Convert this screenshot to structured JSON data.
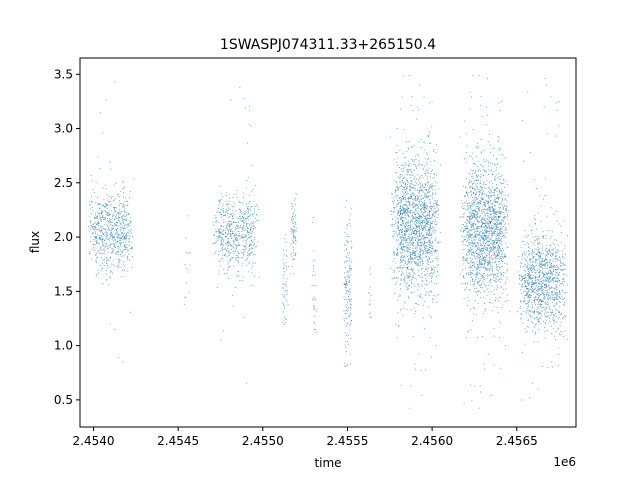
{
  "chart_data": {
    "type": "scatter",
    "title": "1SWASPJ074311.33+265150.4",
    "xlabel": "time",
    "ylabel": "flux",
    "x_offset_label": "1e6",
    "xlim": [
      2.45392,
      2.45685
    ],
    "ylim": [
      0.25,
      3.65
    ],
    "x_ticks": [
      2.454,
      2.4545,
      2.455,
      2.4555,
      2.456,
      2.4565
    ],
    "x_tick_labels": [
      "2.4540",
      "2.4545",
      "2.4550",
      "2.4555",
      "2.4560",
      "2.4565"
    ],
    "y_ticks": [
      0.5,
      1.0,
      1.5,
      2.0,
      2.5,
      3.0,
      3.5
    ],
    "y_tick_labels": [
      "0.5",
      "1.0",
      "1.5",
      "2.0",
      "2.5",
      "3.0",
      "3.5"
    ],
    "grid": false,
    "legend": "none",
    "marker_color": "#1f77b4",
    "series": [
      {
        "clusters": [
          {
            "x": 2.4541,
            "width": 0.00014,
            "center": 2.05,
            "spread": 0.17,
            "min": 0.85,
            "max": 3.5,
            "count": 700
          },
          {
            "x": 2.45455,
            "width": 2e-05,
            "center": 1.7,
            "spread": 0.35,
            "min": 1.03,
            "max": 2.27,
            "count": 14
          },
          {
            "x": 2.45484,
            "width": 0.00014,
            "center": 2.05,
            "spread": 0.17,
            "min": 0.65,
            "max": 3.47,
            "count": 620
          },
          {
            "x": 2.45513,
            "width": 2e-05,
            "center": 1.6,
            "spread": 0.22,
            "min": 1.18,
            "max": 2.05,
            "count": 55
          },
          {
            "x": 2.45518,
            "width": 2e-05,
            "center": 2.05,
            "spread": 0.15,
            "min": 1.65,
            "max": 2.42,
            "count": 80
          },
          {
            "x": 2.4553,
            "width": 1.5e-05,
            "center": 1.6,
            "spread": 0.3,
            "min": 0.93,
            "max": 2.25,
            "count": 30
          },
          {
            "x": 2.4555,
            "width": 2.5e-05,
            "center": 1.55,
            "spread": 0.3,
            "min": 0.78,
            "max": 2.38,
            "count": 160
          },
          {
            "x": 2.45563,
            "width": 1e-05,
            "center": 1.5,
            "spread": 0.2,
            "min": 1.2,
            "max": 1.8,
            "count": 14
          },
          {
            "x": 2.4559,
            "width": 0.00015,
            "center": 2.1,
            "spread": 0.3,
            "min": 0.42,
            "max": 3.5,
            "count": 1700
          },
          {
            "x": 2.45631,
            "width": 0.00015,
            "center": 2.05,
            "spread": 0.3,
            "min": 0.42,
            "max": 3.5,
            "count": 1700
          },
          {
            "x": 2.45665,
            "width": 0.00015,
            "center": 1.6,
            "spread": 0.22,
            "min": 0.45,
            "max": 3.5,
            "count": 1100
          }
        ]
      }
    ]
  }
}
